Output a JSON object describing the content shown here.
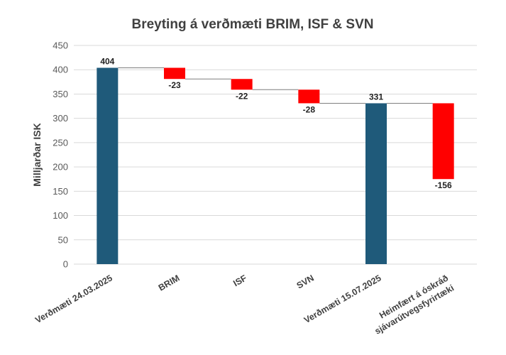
{
  "chart_data": {
    "type": "bar",
    "subtype": "waterfall",
    "title": "Breyting á verðmæti BRIM, ISF & SVN",
    "xlabel": "",
    "ylabel": "Milljarðar ISK",
    "ylim": [
      0,
      450
    ],
    "yticks": [
      0,
      50,
      100,
      150,
      200,
      250,
      300,
      350,
      400,
      450
    ],
    "grid": true,
    "legend": "none",
    "categories": [
      [
        "Verðmæti 24.03.2025"
      ],
      [
        "BRIM"
      ],
      [
        "ISF"
      ],
      [
        "SVN"
      ],
      [
        "Verðmæti 15.07.2025"
      ],
      [
        "Heimfært á óskráð",
        "sjávarútvegsfyrirtæki"
      ]
    ],
    "values": [
      404,
      -23,
      -22,
      -28,
      331,
      -156
    ],
    "kinds": [
      "total",
      "delta",
      "delta",
      "delta",
      "total",
      "delta"
    ],
    "data_labels": [
      "404",
      "-23",
      "-22",
      "-28",
      "331",
      "-156"
    ],
    "colors": {
      "total": "#1f5a7a",
      "decrease": "#ff0000"
    }
  }
}
